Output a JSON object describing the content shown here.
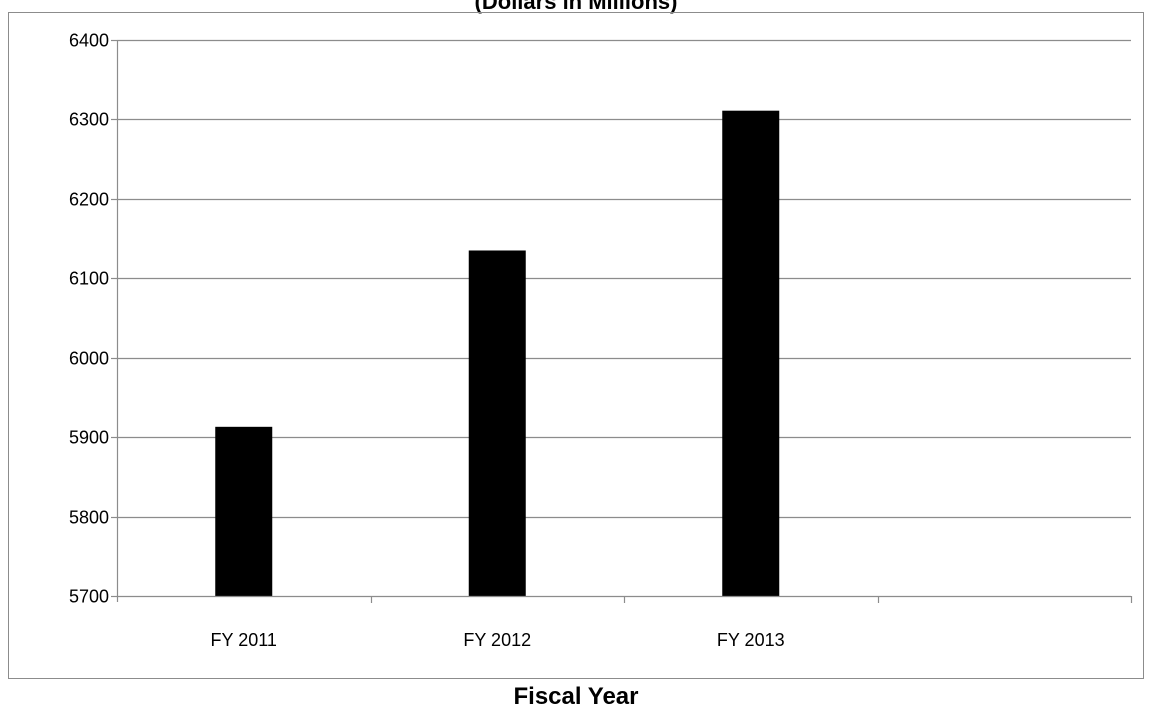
{
  "chart_data": {
    "type": "bar",
    "title": "(Dollars in Millions)",
    "xlabel": "Fiscal Year",
    "ylabel": "",
    "categories": [
      "FY 2011",
      "FY 2012",
      "FY 2013",
      ""
    ],
    "values": [
      5913,
      6135,
      6311,
      null
    ],
    "ylim": [
      5700,
      6400
    ],
    "yticks": [
      5700,
      5800,
      5900,
      6000,
      6100,
      6200,
      6300,
      6400
    ],
    "grid": true,
    "legend": "none",
    "bar_color": "#000000",
    "grid_color": "#8c8c8c"
  }
}
